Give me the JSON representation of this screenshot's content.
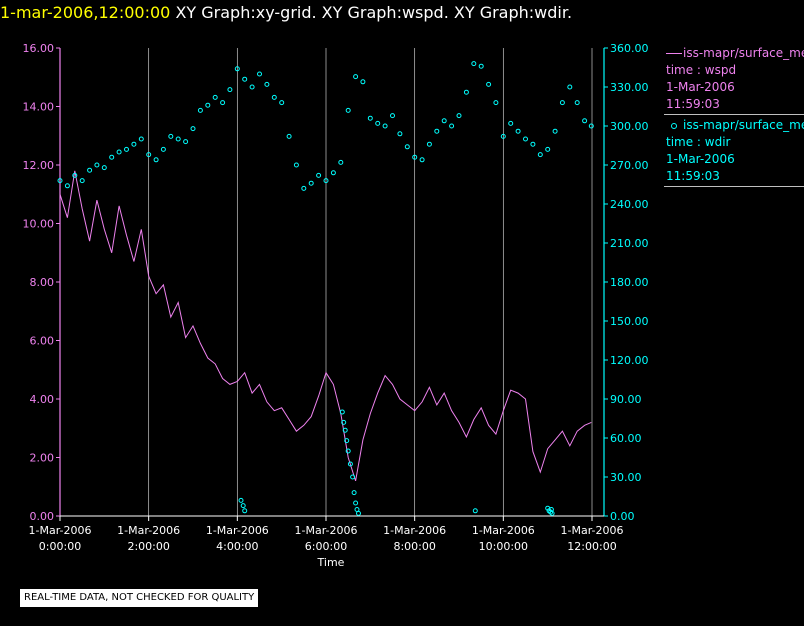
{
  "header": {
    "timestamp": "1-mar-2006,12:00:00",
    "titles": [
      "XY Graph:xy-grid.",
      "XY Graph:wspd.",
      "XY Graph:wdir."
    ]
  },
  "colors": {
    "background": "#000000",
    "wspd": "#ee82ee",
    "wdir": "#00ffff",
    "grid": "#c8c8c8",
    "timestamp": "#ffff00"
  },
  "legend": [
    {
      "series": "wspd",
      "label": "iss-mapr/surface_met",
      "detail": "time : wspd",
      "date": "1-Mar-2006",
      "time": "11:59:03"
    },
    {
      "series": "wdir",
      "label": "iss-mapr/surface_met",
      "detail": "time : wdir",
      "date": "1-Mar-2006",
      "time": "11:59:03"
    }
  ],
  "disclaimer": "REAL-TIME DATA, NOT CHECKED FOR QUALITY",
  "chart_data": {
    "type": "line",
    "xlabel": "Time",
    "x_ticks": [
      {
        "date": "1-Mar-2006",
        "time": "0:00:00"
      },
      {
        "date": "1-Mar-2006",
        "time": "2:00:00"
      },
      {
        "date": "1-Mar-2006",
        "time": "4:00:00"
      },
      {
        "date": "1-Mar-2006",
        "time": "6:00:00"
      },
      {
        "date": "1-Mar-2006",
        "time": "8:00:00"
      },
      {
        "date": "1-Mar-2006",
        "time": "10:00:00"
      },
      {
        "date": "1-Mar-2006",
        "time": "12:00:00"
      }
    ],
    "xlim": [
      "1-Mar-2006 0:00:00",
      "1-Mar-2006 12:00:00"
    ],
    "y_left": {
      "ylim": [
        0,
        16
      ],
      "ticks": [
        "0.00",
        "2.00",
        "4.00",
        "6.00",
        "8.00",
        "10.00",
        "12.00",
        "14.00",
        "16.00"
      ]
    },
    "y_right": {
      "ylim": [
        0,
        360
      ],
      "ticks": [
        "0.00",
        "30.00",
        "60.00",
        "90.00",
        "120.00",
        "150.00",
        "180.00",
        "210.00",
        "240.00",
        "270.00",
        "300.00",
        "330.00",
        "360.00"
      ]
    },
    "grid": "vertical",
    "series": [
      {
        "id": "wspd",
        "kind": "line",
        "axis": "left",
        "t": [
          "0:00",
          "0:10",
          "0:20",
          "0:30",
          "0:40",
          "0:50",
          "1:00",
          "1:10",
          "1:20",
          "1:30",
          "1:40",
          "1:50",
          "2:00",
          "2:10",
          "2:20",
          "2:30",
          "2:40",
          "2:50",
          "3:00",
          "3:10",
          "3:20",
          "3:30",
          "3:40",
          "3:50",
          "4:00",
          "4:10",
          "4:20",
          "4:30",
          "4:40",
          "4:50",
          "5:00",
          "5:10",
          "5:20",
          "5:30",
          "5:40",
          "5:50",
          "6:00",
          "6:10",
          "6:20",
          "6:30",
          "6:40",
          "6:50",
          "7:00",
          "7:10",
          "7:20",
          "7:30",
          "7:40",
          "7:50",
          "8:00",
          "8:10",
          "8:20",
          "8:30",
          "8:40",
          "8:50",
          "9:00",
          "9:10",
          "9:20",
          "9:30",
          "9:40",
          "9:50",
          "10:00",
          "10:10",
          "10:20",
          "10:30",
          "10:40",
          "10:50",
          "11:00",
          "11:10",
          "11:20",
          "11:30",
          "11:40",
          "11:50",
          "11:59"
        ],
        "values": [
          11.0,
          10.2,
          11.8,
          10.5,
          9.4,
          10.8,
          9.8,
          9.0,
          10.6,
          9.6,
          8.7,
          9.8,
          8.2,
          7.6,
          7.9,
          6.8,
          7.3,
          6.1,
          6.5,
          5.9,
          5.4,
          5.2,
          4.7,
          4.5,
          4.6,
          4.9,
          4.2,
          4.5,
          3.9,
          3.6,
          3.7,
          3.3,
          2.9,
          3.1,
          3.4,
          4.1,
          4.9,
          4.5,
          3.5,
          2.0,
          1.2,
          2.6,
          3.5,
          4.2,
          4.8,
          4.5,
          4.0,
          3.8,
          3.6,
          3.9,
          4.4,
          3.8,
          4.2,
          3.6,
          3.2,
          2.7,
          3.3,
          3.7,
          3.1,
          2.8,
          3.6,
          4.3,
          4.2,
          4.0,
          2.2,
          1.5,
          2.3,
          2.6,
          2.9,
          2.4,
          2.9,
          3.1,
          3.2
        ]
      },
      {
        "id": "wdir",
        "kind": "scatter",
        "axis": "right",
        "t": [
          "0:00",
          "0:10",
          "0:20",
          "0:30",
          "0:40",
          "0:50",
          "1:00",
          "1:10",
          "1:20",
          "1:30",
          "1:40",
          "1:50",
          "2:00",
          "2:10",
          "2:20",
          "2:30",
          "2:40",
          "2:50",
          "3:00",
          "3:10",
          "3:20",
          "3:30",
          "3:40",
          "3:50",
          "4:00",
          "4:10",
          "4:20",
          "4:30",
          "4:40",
          "4:50",
          "5:00",
          "5:10",
          "5:20",
          "5:30",
          "5:40",
          "5:50",
          "6:00",
          "6:10",
          "6:20",
          "6:30",
          "6:40",
          "6:50",
          "7:00",
          "7:10",
          "7:20",
          "7:30",
          "7:40",
          "7:50",
          "8:00",
          "8:10",
          "8:20",
          "8:30",
          "8:40",
          "8:50",
          "9:00",
          "9:10",
          "9:20",
          "9:30",
          "9:40",
          "9:50",
          "10:00",
          "10:10",
          "10:20",
          "10:30",
          "10:40",
          "10:50",
          "11:00",
          "11:10",
          "11:20",
          "11:30",
          "11:40",
          "11:50",
          "11:59"
        ],
        "values": [
          258,
          254,
          262,
          258,
          266,
          270,
          268,
          276,
          280,
          282,
          286,
          290,
          278,
          274,
          282,
          292,
          290,
          288,
          298,
          312,
          316,
          322,
          318,
          328,
          344,
          336,
          330,
          340,
          332,
          322,
          318,
          292,
          270,
          252,
          256,
          262,
          258,
          264,
          272,
          312,
          338,
          334,
          306,
          302,
          300,
          308,
          294,
          284,
          276,
          274,
          286,
          296,
          304,
          300,
          308,
          326,
          348,
          346,
          332,
          318,
          292,
          302,
          296,
          290,
          286,
          278,
          282,
          296,
          318,
          330,
          318,
          304,
          300
        ]
      },
      {
        "id": "wdir-low",
        "kind": "scatter",
        "axis": "right",
        "t": [
          "4:05",
          "4:08",
          "4:10",
          "6:22",
          "6:24",
          "6:26",
          "6:28",
          "6:30",
          "6:33",
          "6:36",
          "6:38",
          "6:40",
          "6:42",
          "6:44",
          "9:22",
          "11:00",
          "11:02",
          "11:04",
          "11:05",
          "11:06"
        ],
        "values": [
          12,
          8,
          4,
          80,
          72,
          66,
          58,
          50,
          40,
          30,
          18,
          10,
          5,
          2,
          4,
          6,
          4,
          3,
          5,
          2
        ]
      }
    ]
  }
}
